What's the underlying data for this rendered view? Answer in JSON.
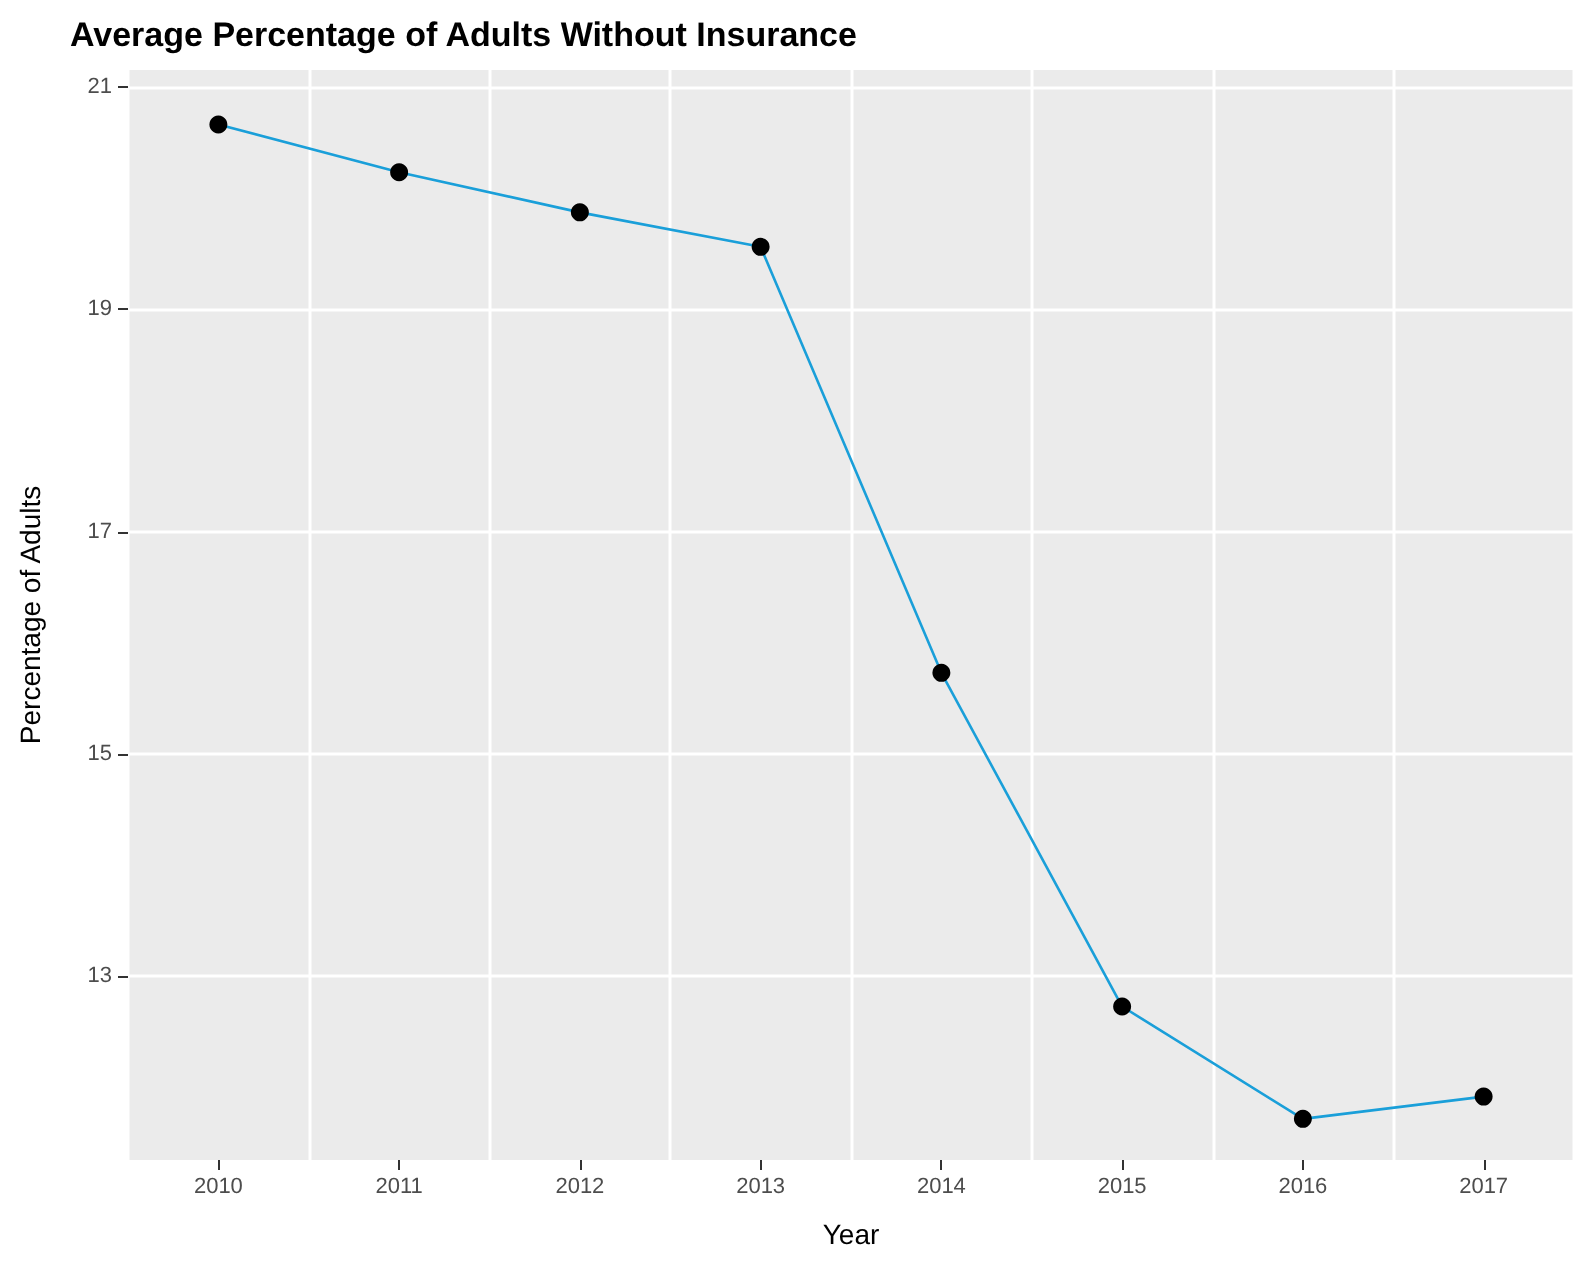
{
  "chart_data": {
    "type": "line",
    "title": "Average Percentage of Adults Without Insurance",
    "xlabel": "Year",
    "ylabel": "Percentage of Adults",
    "categories": [
      "2010",
      "2011",
      "2012",
      "2013",
      "2014",
      "2015",
      "2016",
      "2017"
    ],
    "series": [
      {
        "color": "#1a9fd9",
        "values": [
          20.66,
          20.23,
          19.87,
          19.56,
          15.73,
          12.73,
          11.72,
          11.92
        ]
      }
    ],
    "ylim": [
      11.35,
      21.15
    ],
    "yticks": [
      13,
      15,
      17,
      19,
      21
    ],
    "grid": true,
    "marker": "circle",
    "line_style": "solid"
  }
}
